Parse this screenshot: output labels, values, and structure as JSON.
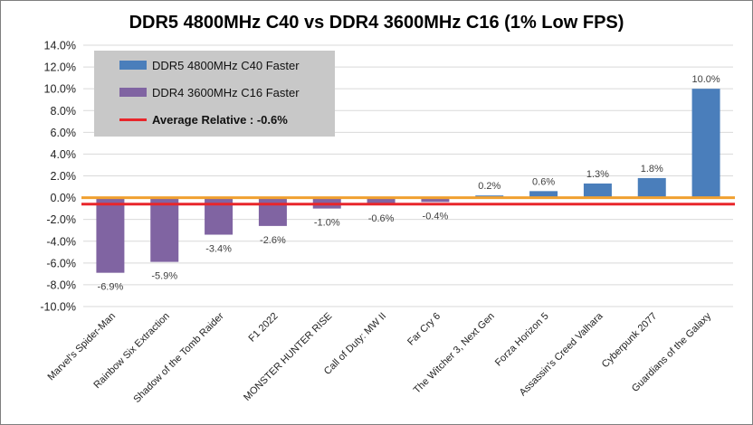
{
  "chart_data": {
    "type": "bar",
    "title": "DDR5 4800MHz C40 vs DDR4 3600MHz C16 (1% Low FPS)",
    "categories": [
      "Marvel's Spider-Man",
      "Rainbow Six Extraction",
      "Shadow of the Tomb Raider",
      "F1 2022",
      "MONSTER HUNTER RISE",
      "Call of Duty: MW II",
      "Far Cry 6",
      "The Witcher 3, Next Gen",
      "Forza Horizon 5",
      "Assassin's Creed Valhara",
      "Cyberpunk 2077",
      "Guardians of the Galaxy"
    ],
    "values": [
      -6.9,
      -5.9,
      -3.4,
      -2.6,
      -1.0,
      -0.6,
      -0.4,
      0.2,
      0.6,
      1.3,
      1.8,
      10.0
    ],
    "data_labels": [
      "-6.9%",
      "-5.9%",
      "-3.4%",
      "-2.6%",
      "-1.0%",
      "-0.6%",
      "-0.4%",
      "0.2%",
      "0.6%",
      "1.3%",
      "1.8%",
      "10.0%"
    ],
    "ylim": [
      -10,
      14
    ],
    "yticks": [
      14,
      12,
      10,
      8,
      6,
      4,
      2,
      0,
      -2,
      -4,
      -6,
      -8,
      -10
    ],
    "ytick_labels": [
      "14.0%",
      "12.0%",
      "10.0%",
      "8.0%",
      "6.0%",
      "4.0%",
      "2.0%",
      "0.0%",
      "-2.0%",
      "-4.0%",
      "-6.0%",
      "-8.0%",
      "-10.0%"
    ],
    "xlabel": "",
    "ylabel": "",
    "average": -0.6,
    "legend": {
      "position": "top-left",
      "positive_label": "DDR5 4800MHz C40 Faster",
      "negative_label": "DDR4 3600MHz C16 Faster",
      "average_label": "Average Relative : -0.6%"
    },
    "colors": {
      "positive": "#4a7ebb",
      "negative": "#8064a2",
      "average_line": "#e8262b",
      "zero_line": "#f0a030",
      "grid": "#d9d9d9"
    }
  }
}
